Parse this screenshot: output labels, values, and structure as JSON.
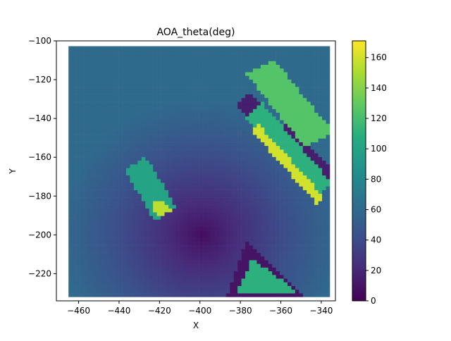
{
  "chart_data": {
    "type": "heatmap",
    "title": "AOA_theta(deg)",
    "xlabel": "X",
    "ylabel": "Y",
    "xlim": [
      -471,
      -333
    ],
    "ylim": [
      -234,
      -100
    ],
    "x_ticks": [
      -460,
      -440,
      -420,
      -400,
      -380,
      -360,
      -340
    ],
    "y_ticks": [
      -100,
      -120,
      -140,
      -160,
      -180,
      -200,
      -220
    ],
    "colorbar": {
      "colormap": "viridis",
      "range": [
        0,
        171
      ],
      "ticks": [
        0,
        20,
        40,
        60,
        80,
        100,
        120,
        140,
        160
      ]
    },
    "grid": false,
    "background_field": {
      "description": "smooth radial field of theta around a minimum",
      "minimum_point": [
        -400,
        -200
      ],
      "minimum_value": 5,
      "edge_value": 60
    },
    "regions": [
      {
        "name": "left-block",
        "corners": [
          [
            -438,
            -167
          ],
          [
            -428,
            -159
          ],
          [
            -413,
            -185
          ],
          [
            -423,
            -193
          ]
        ],
        "value": 100
      },
      {
        "name": "left-block-yellow-dashes",
        "corners": [
          [
            -426,
            -184
          ],
          [
            -420,
            -181
          ],
          [
            -415,
            -187
          ],
          [
            -421,
            -191
          ]
        ],
        "value": 155
      },
      {
        "name": "right-band-low",
        "corners": [
          [
            -383,
            -133
          ],
          [
            -376,
            -127
          ],
          [
            -334,
            -167
          ],
          [
            -341,
            -175
          ]
        ],
        "value": 15
      },
      {
        "name": "right-band-green",
        "corners": [
          [
            -378,
            -140
          ],
          [
            -370,
            -132
          ],
          [
            -336,
            -173
          ],
          [
            -344,
            -182
          ]
        ],
        "value": 110
      },
      {
        "name": "right-band-yellow",
        "corners": [
          [
            -375,
            -147
          ],
          [
            -372,
            -143
          ],
          [
            -340,
            -180
          ],
          [
            -343,
            -184
          ]
        ],
        "value": 160
      },
      {
        "name": "upper-right-band",
        "corners": [
          [
            -378,
            -117
          ],
          [
            -364,
            -110
          ],
          [
            -335,
            -147
          ],
          [
            -349,
            -155
          ]
        ],
        "value": 125
      },
      {
        "name": "bottom-triangle-dark",
        "corners": [
          [
            -388,
            -232
          ],
          [
            -378,
            -203
          ],
          [
            -350,
            -232
          ]
        ],
        "value": 10
      },
      {
        "name": "bottom-triangle-green",
        "corners": [
          [
            -383,
            -230
          ],
          [
            -375,
            -212
          ],
          [
            -352,
            -230
          ]
        ],
        "value": 110
      }
    ]
  }
}
